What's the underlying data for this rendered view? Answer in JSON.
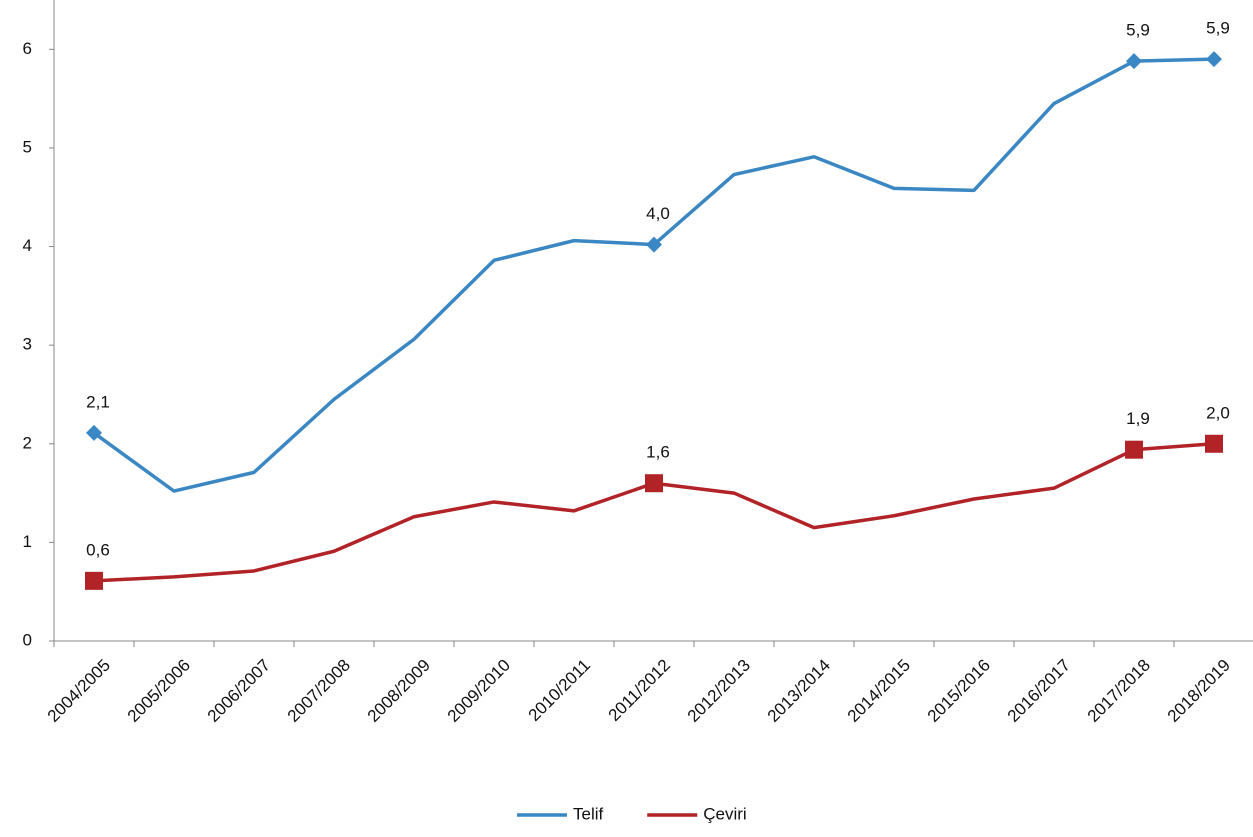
{
  "chart_data": {
    "type": "line",
    "categories": [
      "2004/2005",
      "2005/2006",
      "2006/2007",
      "2007/2008",
      "2008/2009",
      "2009/2010",
      "2010/2011",
      "2011/2012",
      "2012/2013",
      "2013/2014",
      "2014/2015",
      "2015/2016",
      "2016/2017",
      "2017/2018",
      "2018/2019"
    ],
    "series": [
      {
        "name": "Telif",
        "color": "#3a87c4",
        "marker": "diamond",
        "values": [
          2.11,
          1.52,
          1.71,
          2.45,
          3.06,
          3.86,
          4.06,
          4.02,
          4.73,
          4.91,
          4.59,
          4.57,
          5.45,
          5.88,
          5.9
        ],
        "value_labels": [
          "2,1",
          null,
          null,
          null,
          null,
          null,
          null,
          "4,0",
          null,
          null,
          null,
          null,
          null,
          "5,9",
          "5,9"
        ]
      },
      {
        "name": "Çeviri",
        "color": "#b22327",
        "marker": "square",
        "values": [
          0.61,
          0.65,
          0.71,
          0.91,
          1.26,
          1.41,
          1.32,
          1.6,
          1.5,
          1.15,
          1.27,
          1.44,
          1.55,
          1.94,
          2.0
        ],
        "value_labels": [
          "0,6",
          null,
          null,
          null,
          null,
          null,
          null,
          "1,6",
          null,
          null,
          null,
          null,
          null,
          "1,9",
          "2,0"
        ]
      }
    ],
    "ylim": [
      0,
      6.5
    ],
    "yticks": [
      0,
      1,
      2,
      3,
      4,
      5,
      6
    ],
    "grid": false,
    "legend": "bottom"
  }
}
